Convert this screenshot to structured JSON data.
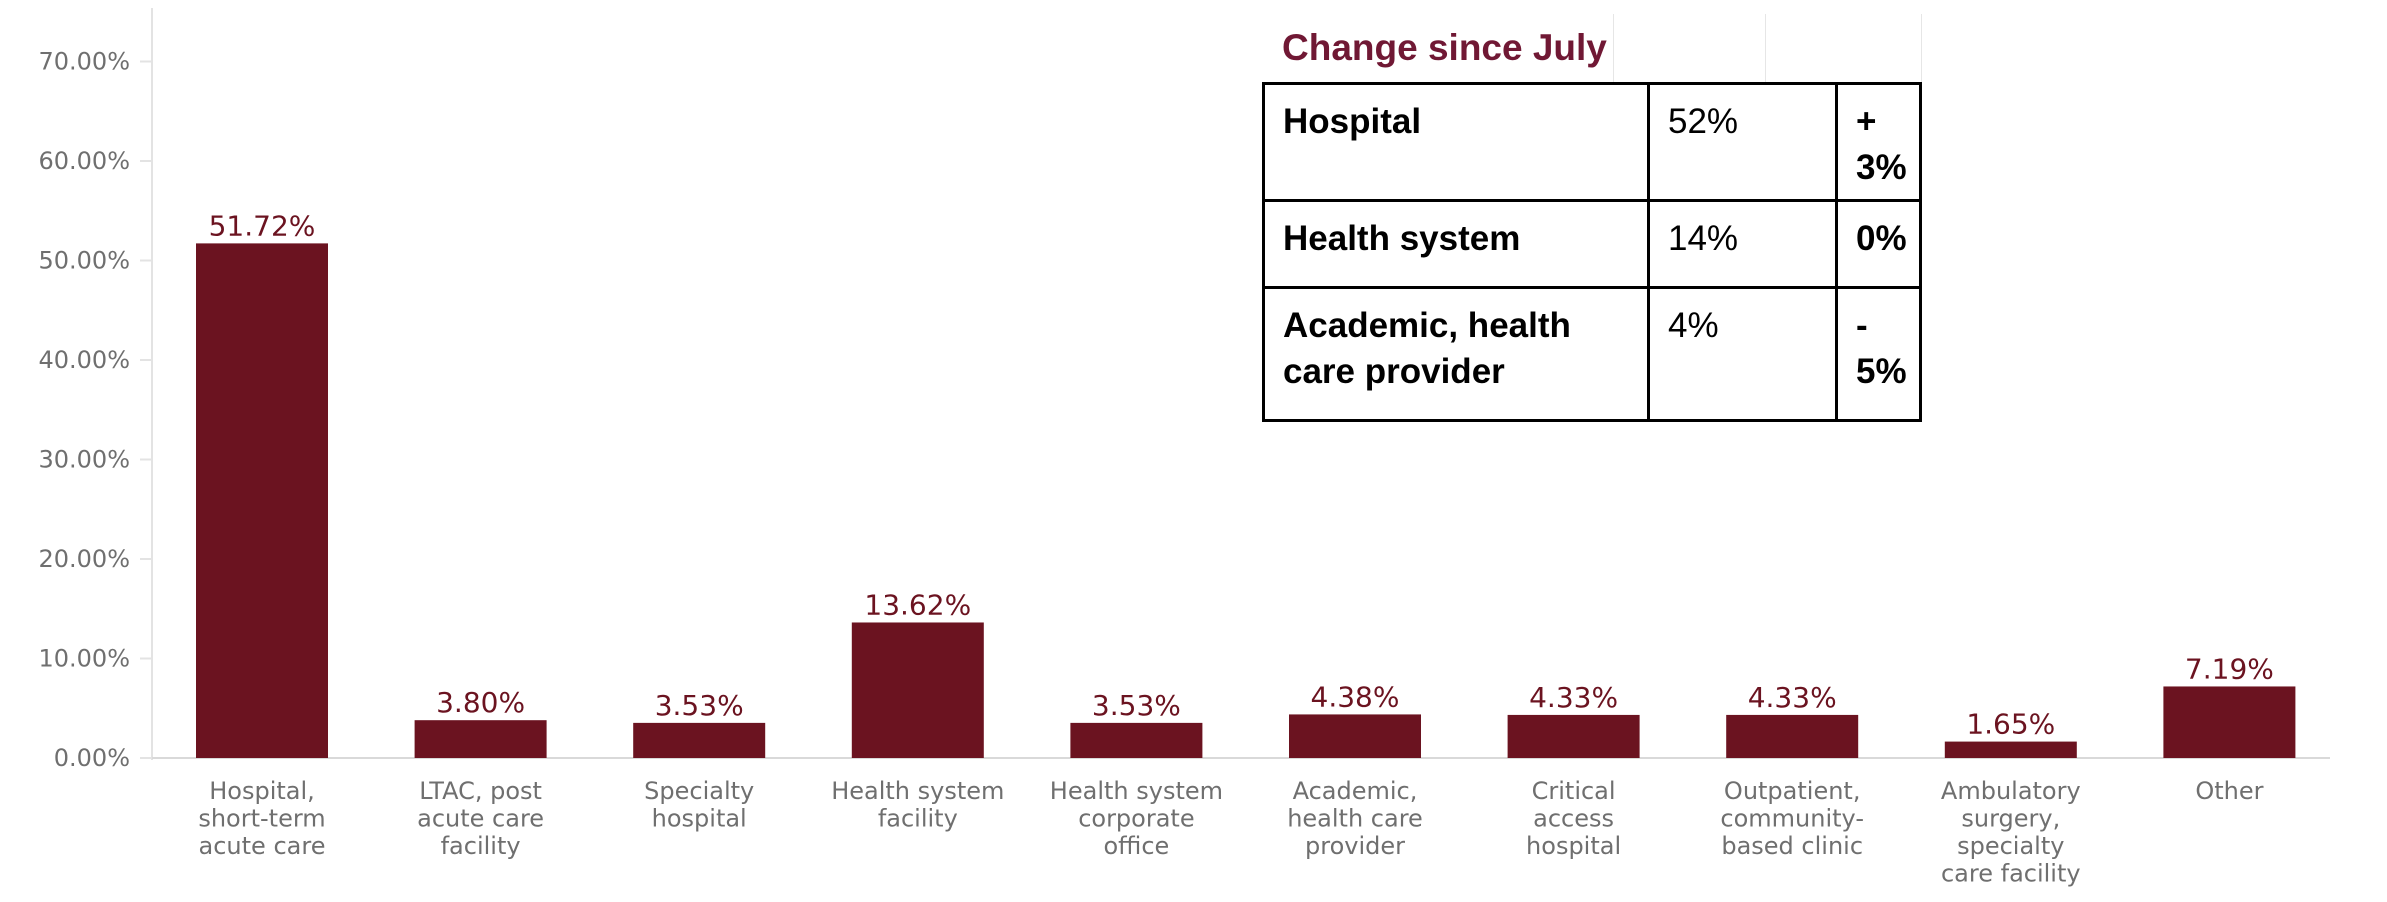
{
  "chart_data": {
    "type": "bar",
    "categories": [
      [
        "Hospital,",
        "short-term",
        "acute care"
      ],
      [
        "LTAC, post",
        "acute care",
        "facility"
      ],
      [
        "Specialty",
        "hospital"
      ],
      [
        "Health system",
        "facility"
      ],
      [
        "Health system",
        "corporate",
        "office"
      ],
      [
        "Academic,",
        "health care",
        "provider"
      ],
      [
        "Critical",
        "access",
        "hospital"
      ],
      [
        "Outpatient,",
        "community-",
        "based clinic"
      ],
      [
        "Ambulatory",
        "surgery,",
        "specialty",
        "care facility"
      ],
      [
        "Other"
      ]
    ],
    "values": [
      51.72,
      3.8,
      3.53,
      13.62,
      3.53,
      4.38,
      4.33,
      4.33,
      1.65,
      7.19
    ],
    "data_labels": [
      "51.72%",
      "3.80%",
      "3.53%",
      "13.62%",
      "3.53%",
      "4.38%",
      "4.33%",
      "4.33%",
      "1.65%",
      "7.19%"
    ],
    "y_ticks": [
      {
        "value": 0,
        "label": "0.00%"
      },
      {
        "value": 10,
        "label": "10.00%"
      },
      {
        "value": 20,
        "label": "20.00%"
      },
      {
        "value": 30,
        "label": "30.00%"
      },
      {
        "value": 40,
        "label": "40.00%"
      },
      {
        "value": 50,
        "label": "50.00%"
      },
      {
        "value": 60,
        "label": "60.00%"
      },
      {
        "value": 70,
        "label": "70.00%"
      }
    ],
    "ylim": [
      0,
      70
    ],
    "title": "",
    "xlabel": "",
    "ylabel": "",
    "grid": false,
    "bar_color": "#6b1320"
  },
  "inset_table": {
    "title": "Change since July",
    "rows": [
      {
        "name": "Hospital",
        "pct": "52%",
        "change": "+ 3%"
      },
      {
        "name": "Health system",
        "pct": "14%",
        "change": "0%"
      },
      {
        "name": "Academic, health care provider",
        "pct": "4%",
        "change": "- 5%"
      }
    ],
    "colors": {
      "title": "#701834",
      "positive": "#1faa45",
      "neutral": "#000000",
      "negative": "#c00000"
    }
  }
}
